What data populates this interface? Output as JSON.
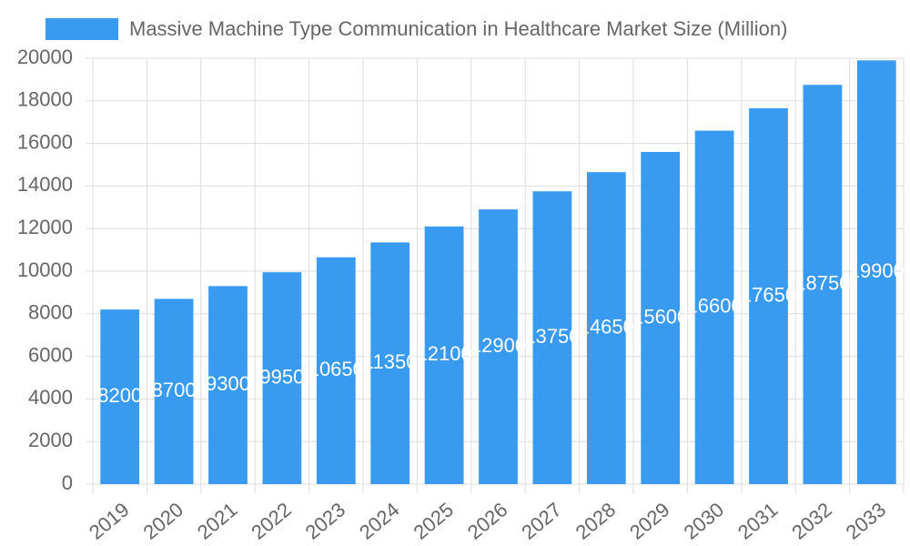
{
  "chart_data": {
    "type": "bar",
    "legend_label": "Massive Machine Type Communication in Healthcare Market Size (Million)",
    "categories": [
      "2019",
      "2020",
      "2021",
      "2022",
      "2023",
      "2024",
      "2025",
      "2026",
      "2027",
      "2028",
      "2029",
      "2030",
      "2031",
      "2032",
      "2033"
    ],
    "values": [
      8200,
      8700,
      9300,
      9950,
      10650,
      11350,
      12100,
      12900,
      13750,
      14650,
      15600,
      16600,
      17650,
      18750,
      19900
    ],
    "color": "#389bf0",
    "ylim": [
      0,
      20000
    ],
    "yticks": [
      0,
      2000,
      4000,
      6000,
      8000,
      10000,
      12000,
      14000,
      16000,
      18000,
      20000
    ],
    "grid": true,
    "data_labels": true
  }
}
